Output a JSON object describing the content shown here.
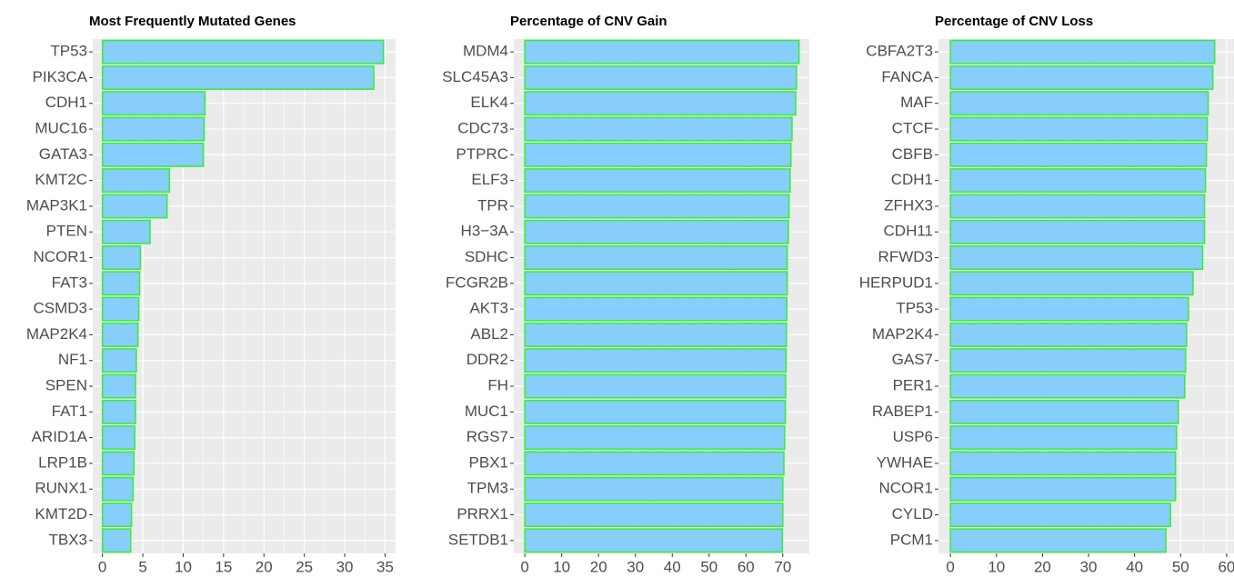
{
  "chart_data": [
    {
      "type": "barh",
      "title": "Most Frequently Mutated Genes",
      "categories": [
        "TP53",
        "PIK3CA",
        "CDH1",
        "MUC16",
        "GATA3",
        "KMT2C",
        "MAP3K1",
        "PTEN",
        "NCOR1",
        "FAT3",
        "CSMD3",
        "MAP2K4",
        "NF1",
        "SPEN",
        "FAT1",
        "ARID1A",
        "LRP1B",
        "RUNX1",
        "KMT2D",
        "TBX3"
      ],
      "values": [
        34.8,
        33.6,
        12.7,
        12.6,
        12.5,
        8.3,
        8.0,
        5.9,
        4.7,
        4.6,
        4.5,
        4.4,
        4.2,
        4.1,
        4.1,
        4.0,
        3.9,
        3.8,
        3.6,
        3.5
      ],
      "color": "#87cefa",
      "edge_color": "#33ee33",
      "xlim": [
        -1.2,
        36.3
      ],
      "xticks": [
        0,
        5,
        10,
        15,
        20,
        25,
        30,
        35
      ],
      "grid": true
    },
    {
      "type": "barh",
      "title": "Percentage of CNV Gain",
      "categories": [
        "MDM4",
        "SLC45A3",
        "ELK4",
        "CDC73",
        "PTPRC",
        "ELF3",
        "TPR",
        "H3−3A",
        "SDHC",
        "FCGR2B",
        "AKT3",
        "ABL2",
        "DDR2",
        "FH",
        "MUC1",
        "RGS7",
        "PBX1",
        "TPM3",
        "PRRX1",
        "SETDB1"
      ],
      "values": [
        74.4,
        73.7,
        73.5,
        72.5,
        72.2,
        72.0,
        71.7,
        71.5,
        71.2,
        71.2,
        71.1,
        71.0,
        70.9,
        70.8,
        70.7,
        70.5,
        70.3,
        70.0,
        70.0,
        69.9
      ],
      "color": "#87cefa",
      "edge_color": "#33ee33",
      "xlim": [
        -3.0,
        77.2
      ],
      "xticks": [
        0,
        10,
        20,
        30,
        40,
        50,
        60,
        70
      ],
      "grid": true
    },
    {
      "type": "barh",
      "title": "Percentage of CNV Loss",
      "categories": [
        "CBFA2T3",
        "FANCA",
        "MAF",
        "CTCF",
        "CBFB",
        "CDH1",
        "ZFHX3",
        "CDH11",
        "RFWD3",
        "HERPUD1",
        "TP53",
        "MAP2K4",
        "GAS7",
        "PER1",
        "RABEP1",
        "USP6",
        "YWHAE",
        "NCOR1",
        "CYLD",
        "PCM1"
      ],
      "values": [
        57.4,
        57.0,
        56.0,
        55.8,
        55.6,
        55.4,
        55.2,
        55.2,
        54.8,
        52.7,
        51.7,
        51.3,
        51.1,
        50.9,
        49.5,
        49.1,
        48.9,
        48.9,
        47.8,
        46.8
      ],
      "color": "#87cefa",
      "edge_color": "#33ee33",
      "xlim": [
        -2.6,
        61.6
      ],
      "xticks": [
        0,
        10,
        20,
        30,
        40,
        50,
        60
      ],
      "grid": true
    }
  ]
}
